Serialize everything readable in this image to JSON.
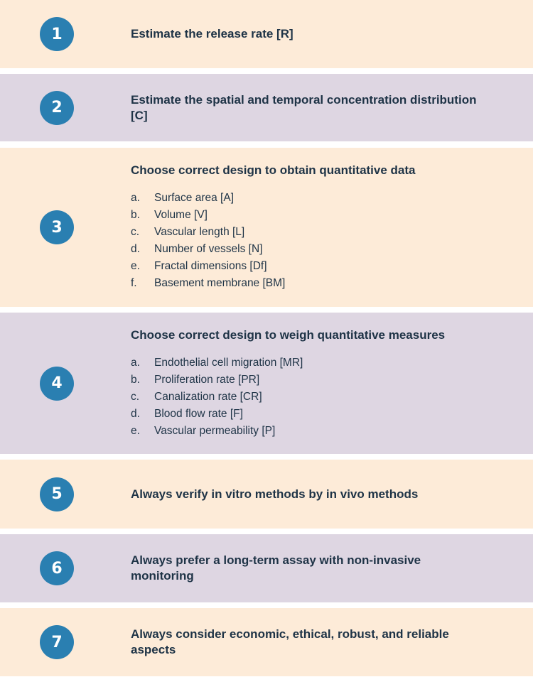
{
  "colors": {
    "peach": "#fdebd8",
    "lavender": "#ded6e2",
    "circle": "#2a7fb1",
    "text": "#1e3346"
  },
  "steps": [
    {
      "number": "1",
      "title": "Estimate the release rate [R]"
    },
    {
      "number": "2",
      "title": "Estimate the spatial and temporal concentration distribution [C]"
    },
    {
      "number": "3",
      "title": "Choose correct design to obtain quantitative data",
      "items": [
        {
          "marker": "a.",
          "text": "Surface area [A]"
        },
        {
          "marker": "b.",
          "text": "Volume [V]"
        },
        {
          "marker": "c.",
          "text": "Vascular length [L]"
        },
        {
          "marker": "d.",
          "text": "Number of vessels [N]"
        },
        {
          "marker": "e.",
          "text": "Fractal dimensions [Df]"
        },
        {
          "marker": "f.",
          "text": "Basement membrane [BM]"
        }
      ]
    },
    {
      "number": "4",
      "title": "Choose correct design to weigh quantitative measures",
      "items": [
        {
          "marker": "a.",
          "text": "Endothelial cell migration [MR]"
        },
        {
          "marker": "b.",
          "text": "Proliferation rate [PR]"
        },
        {
          "marker": "c.",
          "text": "Canalization rate [CR]"
        },
        {
          "marker": "d.",
          "text": "Blood flow rate [F]"
        },
        {
          "marker": "e.",
          "text": "Vascular permeability [P]"
        }
      ]
    },
    {
      "number": "5",
      "title": "Always verify in vitro methods by in vivo methods"
    },
    {
      "number": "6",
      "title": "Always prefer a long-term assay with non-invasive monitoring"
    },
    {
      "number": "7",
      "title": "Always consider economic, ethical, robust, and reliable aspects"
    }
  ]
}
